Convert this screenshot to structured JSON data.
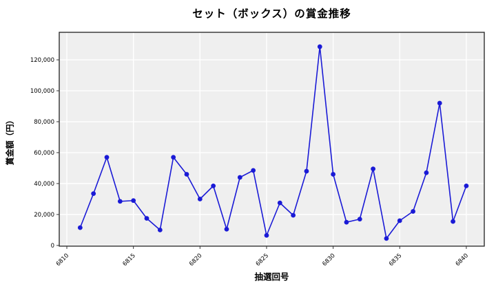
{
  "chart_data": {
    "type": "line",
    "title": "セット（ボックス）の賞金推移",
    "xlabel": "抽選回号",
    "ylabel": "賞金額（円）",
    "x": [
      6811,
      6812,
      6813,
      6814,
      6815,
      6816,
      6817,
      6818,
      6819,
      6820,
      6821,
      6822,
      6823,
      6824,
      6825,
      6826,
      6827,
      6828,
      6829,
      6830,
      6831,
      6832,
      6833,
      6834,
      6835,
      6836,
      6837,
      6838,
      6839,
      6840
    ],
    "values": [
      11500,
      33500,
      57000,
      28500,
      29000,
      17500,
      10000,
      57000,
      46000,
      30000,
      38500,
      10500,
      44000,
      48500,
      6500,
      27500,
      19500,
      48000,
      128500,
      46000,
      15000,
      17000,
      49500,
      4500,
      16000,
      22000,
      47000,
      92000,
      15500,
      38500
    ],
    "xticks": [
      6810,
      6815,
      6820,
      6825,
      6830,
      6835,
      6840
    ],
    "xtick_labels": [
      "6810",
      "6815",
      "6820",
      "6825",
      "6830",
      "6835",
      "6840"
    ],
    "yticks": [
      0,
      20000,
      40000,
      60000,
      80000,
      100000,
      120000
    ],
    "ytick_labels": [
      "0",
      "20,000",
      "40,000",
      "60,000",
      "80,000",
      "100,000",
      "120,000"
    ],
    "xlim": [
      6809.43,
      6841.35
    ],
    "ylim": [
      -450,
      137800
    ],
    "grid": true,
    "legend": "none",
    "marker": "circle"
  },
  "colors": {
    "line": "#1a1ad6",
    "marker": "#1a1ad6",
    "plot_bg": "#efefef",
    "grid": "#ffffff",
    "spine": "#2e2e2e",
    "tick": "#333333",
    "text": "#000000",
    "figure_bg": "#ffffff"
  }
}
